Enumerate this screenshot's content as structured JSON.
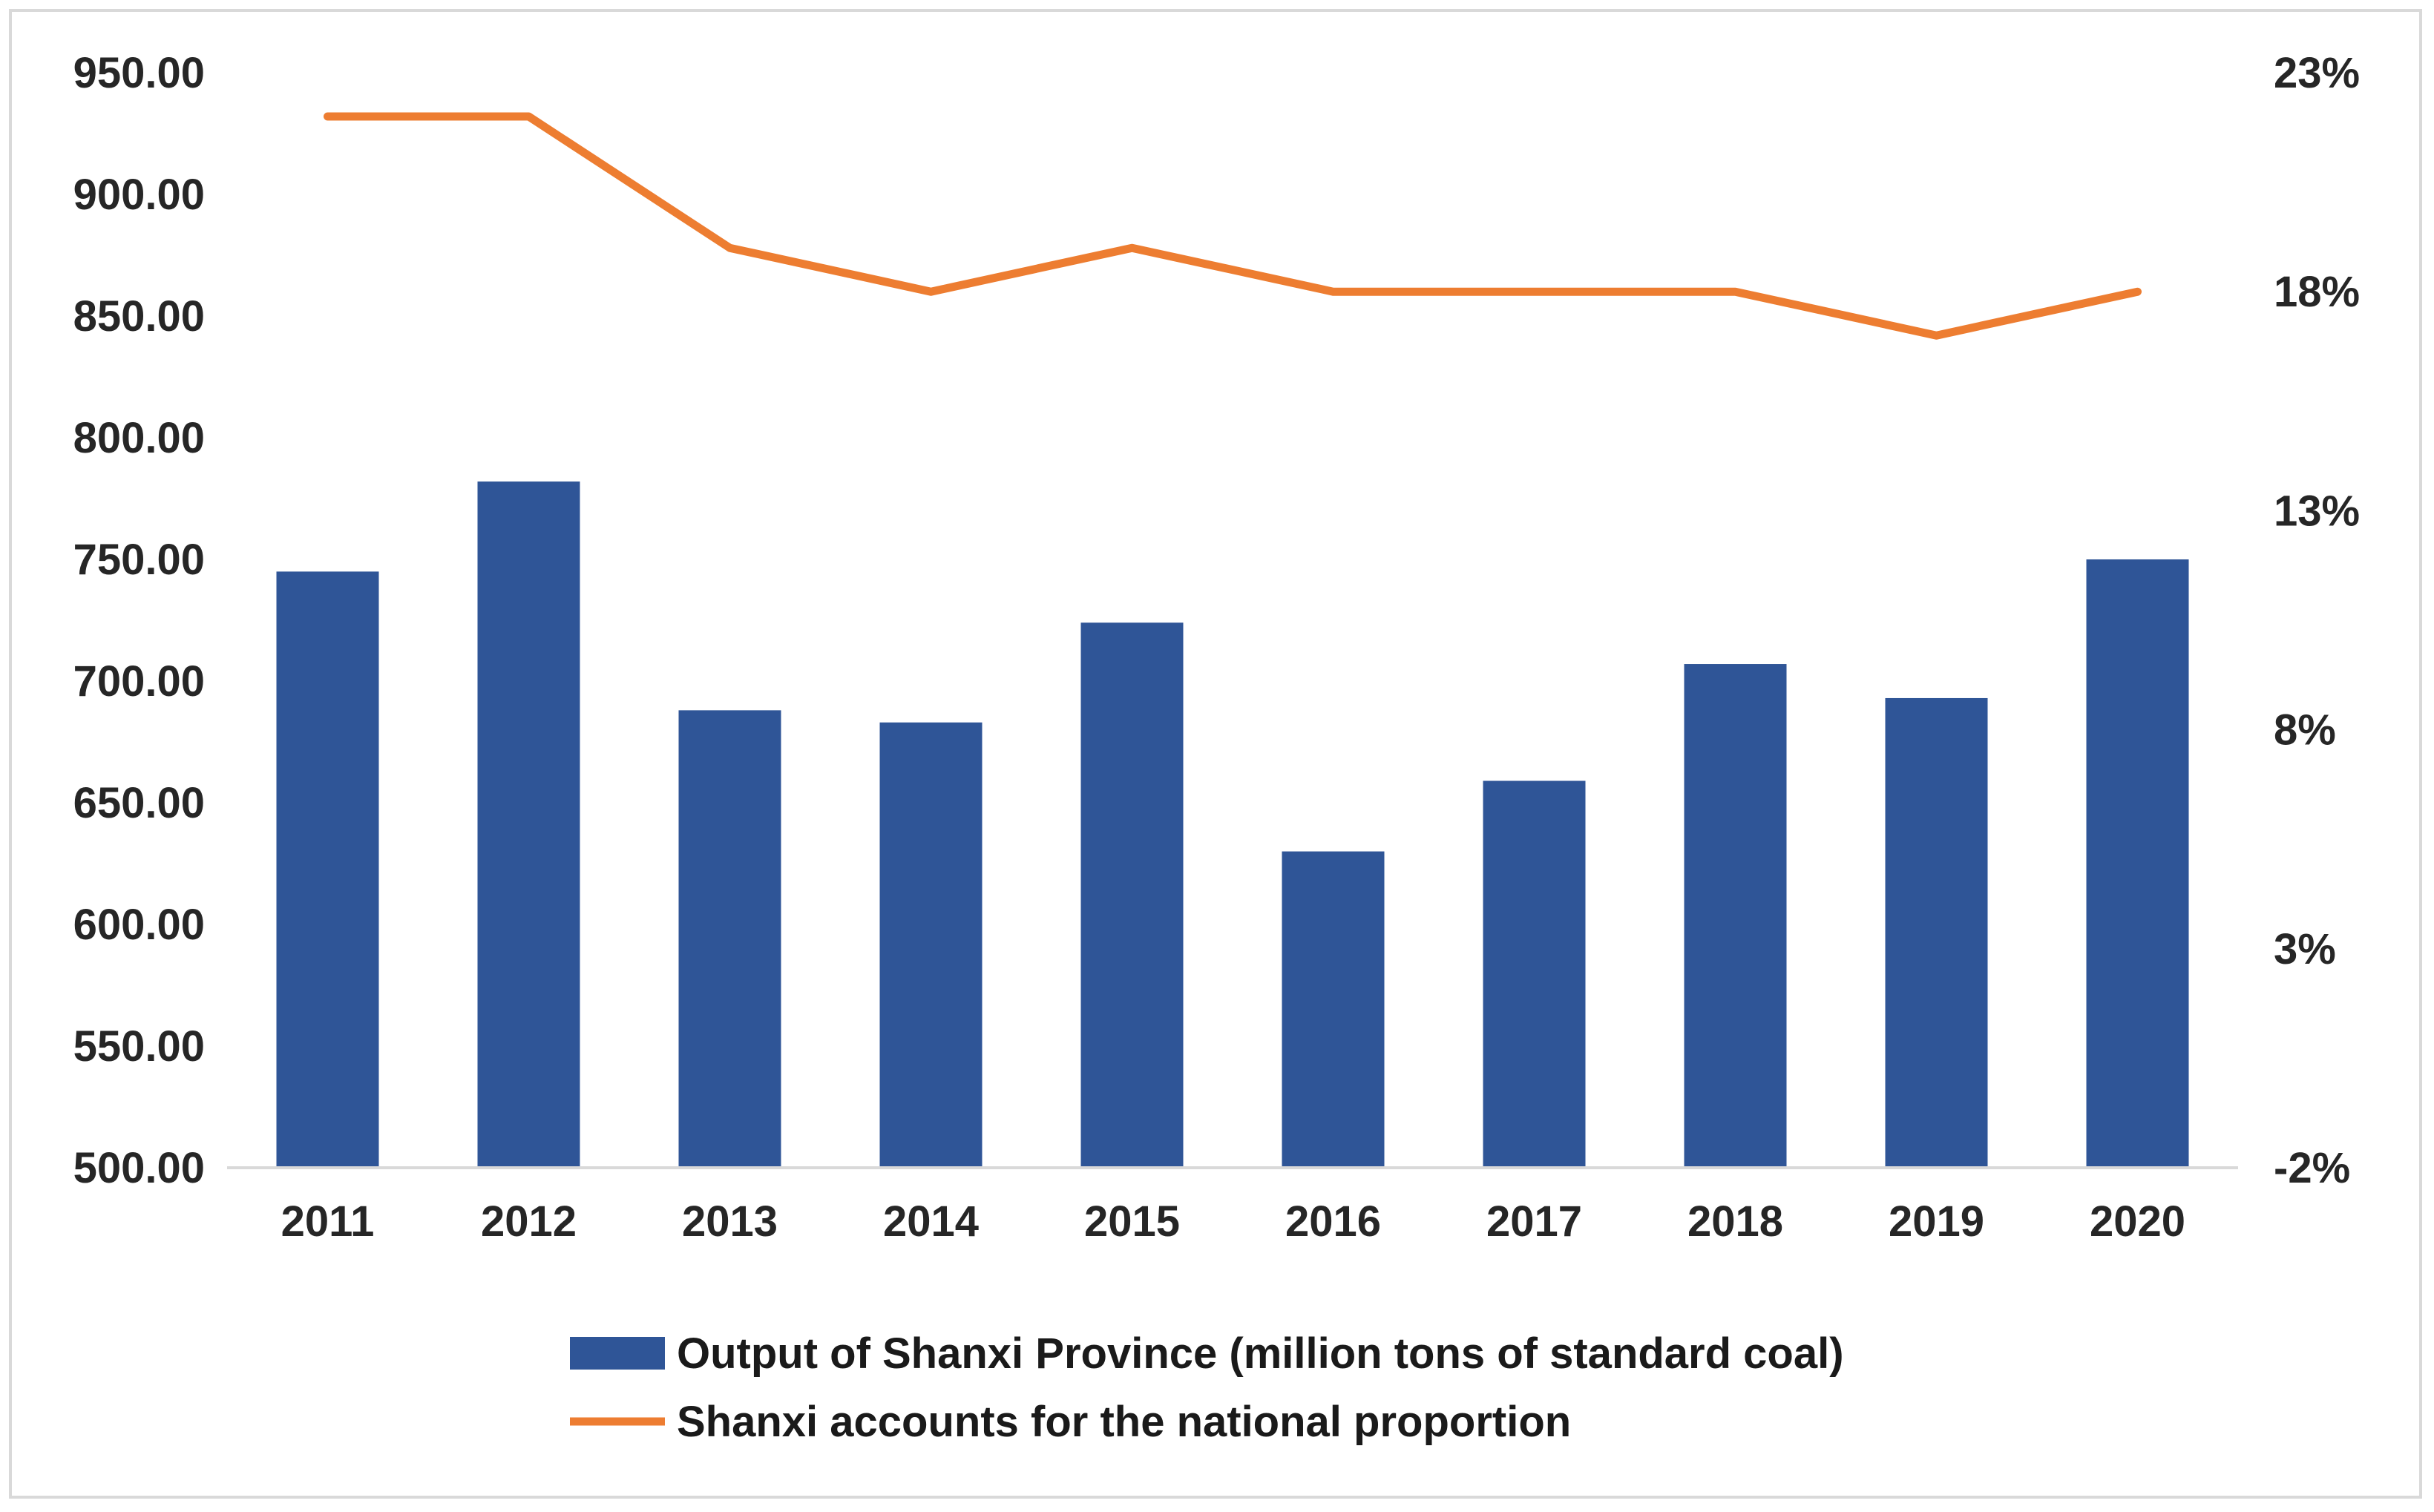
{
  "chart_data": {
    "type": "bar",
    "categories": [
      "2011",
      "2012",
      "2013",
      "2014",
      "2015",
      "2016",
      "2017",
      "2018",
      "2019",
      "2020"
    ],
    "series": [
      {
        "name": "Output of Shanxi Province (million tons of standard coal)",
        "type": "bar",
        "axis": "left",
        "color": "#2f5597",
        "values": [
          745,
          782,
          688,
          683,
          724,
          630,
          659,
          707,
          693,
          750
        ]
      },
      {
        "name": "Shanxi accounts for the national proportion",
        "type": "line",
        "axis": "right",
        "color": "#ed7d31",
        "values": [
          22,
          22,
          19,
          18,
          19,
          18,
          18,
          18,
          17,
          18
        ]
      }
    ],
    "y_left": {
      "lim": [
        500,
        950
      ],
      "ticks": [
        500,
        550,
        600,
        650,
        700,
        750,
        800,
        850,
        900,
        950
      ],
      "tick_labels": [
        "500.00",
        "550.00",
        "600.00",
        "650.00",
        "700.00",
        "750.00",
        "800.00",
        "850.00",
        "900.00",
        "950.00"
      ]
    },
    "y_right": {
      "lim": [
        -2,
        23
      ],
      "ticks": [
        -2,
        3,
        8,
        13,
        18,
        23
      ],
      "tick_labels": [
        "-2%",
        "3%",
        "8%",
        "13%",
        "18%",
        "23%"
      ]
    },
    "grid": false,
    "legend_position": "bottom"
  }
}
